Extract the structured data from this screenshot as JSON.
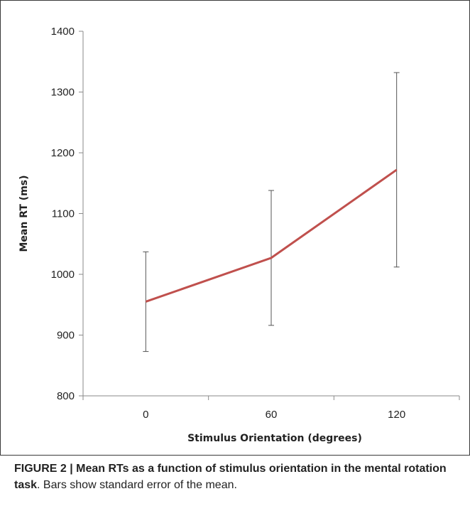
{
  "chart_data": {
    "type": "line",
    "title": "",
    "xlabel": "Stimulus Orientation (degrees)",
    "ylabel": "Mean RT (ms)",
    "categories": [
      "0",
      "60",
      "120"
    ],
    "ylim": [
      800,
      1400
    ],
    "yticks": [
      "800",
      "900",
      "1000",
      "1100",
      "1200",
      "1300",
      "1400"
    ],
    "series": [
      {
        "values": [
          955,
          1027,
          1172
        ],
        "error": [
          82,
          111,
          160
        ],
        "color": "#c0504d"
      }
    ],
    "legend": "none",
    "grid": false
  },
  "caption": {
    "bold_text": "FIGURE 2 | Mean RTs as a function of stimulus orientation in the mental rotation task",
    "rest_text": ". Bars show standard error of the mean."
  }
}
